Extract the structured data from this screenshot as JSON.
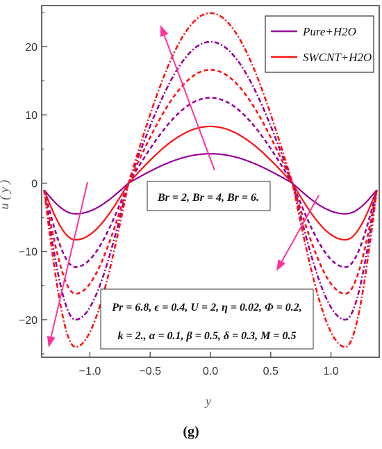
{
  "caption": "(g)",
  "chart_data": {
    "type": "line",
    "title": "",
    "xlabel": "y",
    "ylabel": "u ( y )",
    "xlim": [
      -1.4,
      1.4
    ],
    "ylim": [
      -25.5,
      26
    ],
    "x_ticks": [
      -1.0,
      -0.5,
      0.0,
      0.5,
      1.0
    ],
    "x_tick_labels": [
      "−1.0",
      "−0.5",
      "0.0",
      "0.5",
      "1.0"
    ],
    "y_ticks": [
      -20,
      -10,
      0,
      10,
      20
    ],
    "y_tick_labels": [
      "−20",
      "−10",
      "0",
      "10",
      "20"
    ],
    "grid": false,
    "legend_position": "top-right",
    "legend": [
      {
        "label": "Pure+H2O",
        "color": "#990099"
      },
      {
        "label": "SWCNT+H2O",
        "color": "#ff1111"
      }
    ],
    "annotations": {
      "br_label": "Br = 2, Br = 4, Br = 6.",
      "params_line1": "Pr = 6.8, ϵ = 0.4, U = 2, η = 0.02, Φ = 0.2,",
      "params_line2": "k = 2., α = 0.1, β = 0.5, δ = 0.3, M = 0.5",
      "arrow_color": "#ff3399"
    },
    "series": [
      {
        "fluid": "Pure+H2O",
        "br": 2,
        "color": "#990099",
        "dash": "solid",
        "peak": 4.3,
        "trough": -4.5
      },
      {
        "fluid": "SWCNT+H2O",
        "br": 2,
        "color": "#ff1111",
        "dash": "solid",
        "peak": 8.3,
        "trough": -8.3
      },
      {
        "fluid": "Pure+H2O",
        "br": 4,
        "color": "#990099",
        "dash": "dashed",
        "peak": 12.5,
        "trough": -12.3
      },
      {
        "fluid": "SWCNT+H2O",
        "br": 4,
        "color": "#ff1111",
        "dash": "dashed",
        "peak": 16.6,
        "trough": -16.2
      },
      {
        "fluid": "Pure+H2O",
        "br": 6,
        "color": "#990099",
        "dash": "dashdot",
        "peak": 20.7,
        "trough": -20.0
      },
      {
        "fluid": "SWCNT+H2O",
        "br": 6,
        "color": "#ff1111",
        "dash": "dashdot",
        "peak": 24.9,
        "trough": -24.0
      }
    ]
  }
}
